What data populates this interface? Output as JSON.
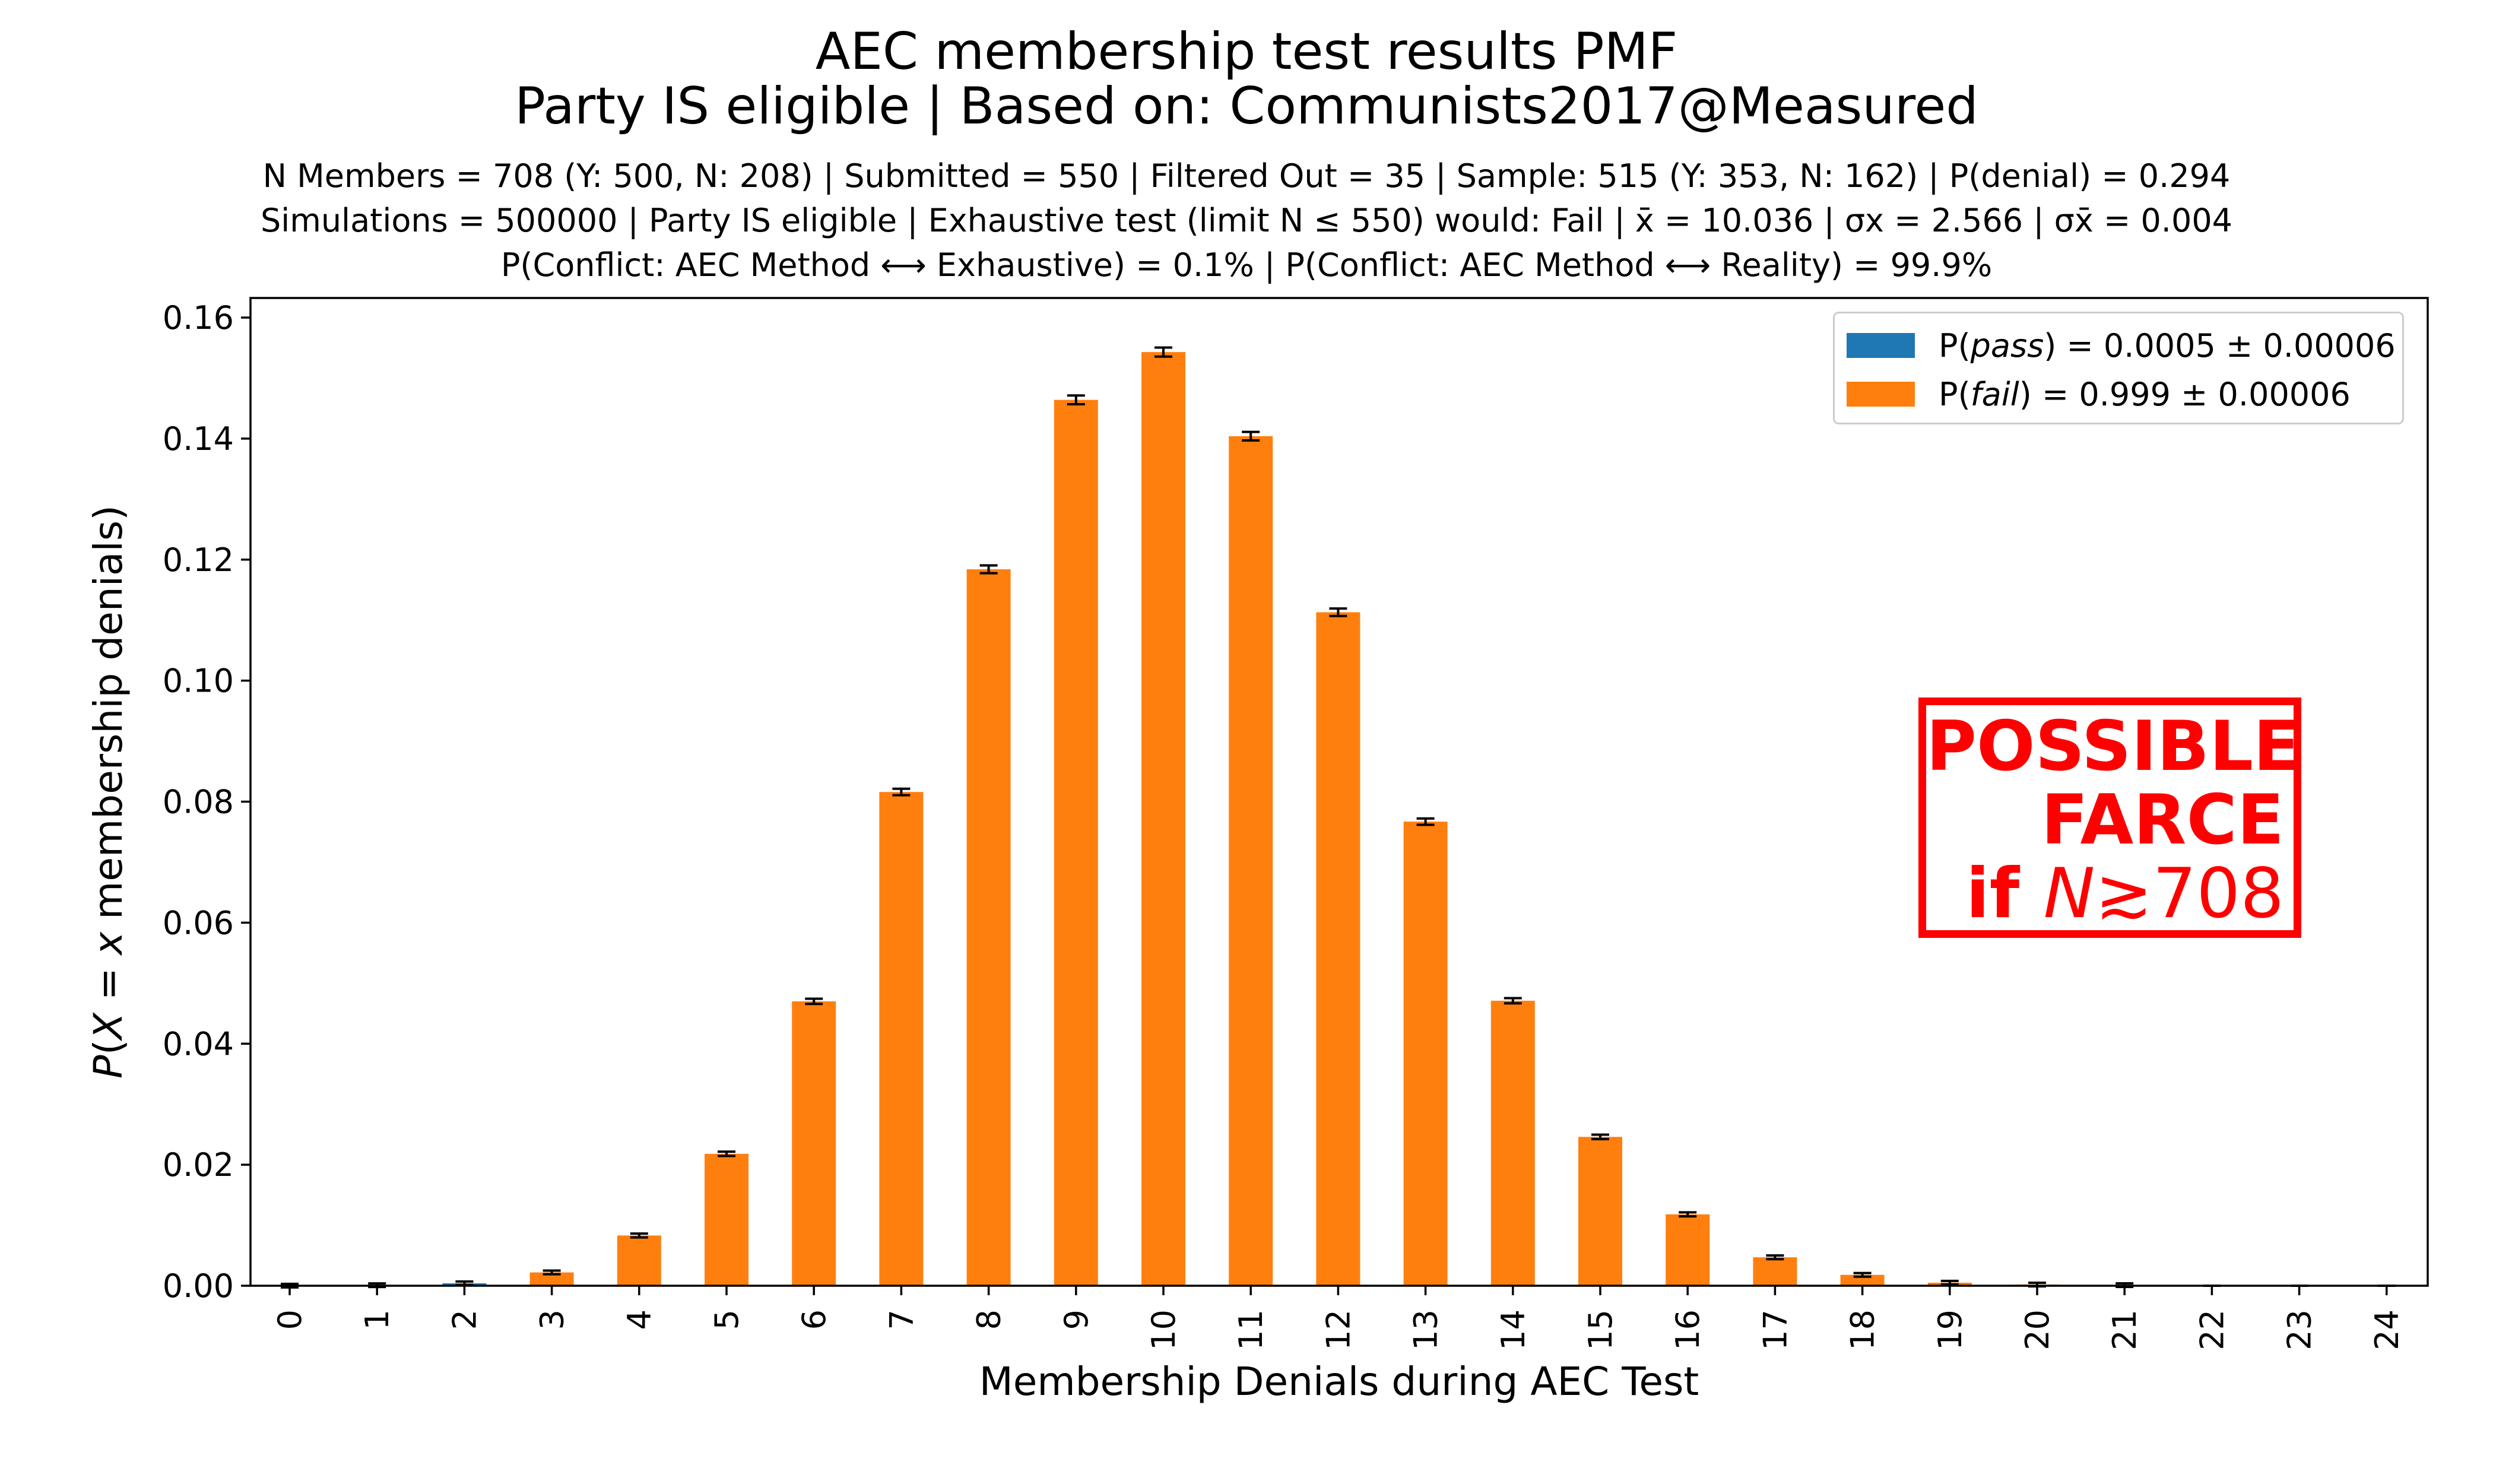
{
  "chart_data": {
    "type": "bar",
    "title": "AEC membership test results PMF",
    "subtitle": "Party IS eligible | Based on: Communists2017@Measured",
    "info_lines": [
      "N Members = 708 (Y: 500, N: 208) | Submitted = 550 | Filtered Out = 35 | Sample: 515 (Y: 353, N: 162) | P(denial) = 0.294",
      "Simulations = 500000 | Party IS eligible | Exhaustive test (limit N ≤ 550) would: Fail | x̄ = 10.036 | σx = 2.566 | σx̄ = 0.004",
      "P(Conflict: AEC Method ⟷ Exhaustive) = 0.1% | P(Conflict: AEC Method ⟷ Reality) = 99.9%"
    ],
    "xlabel": "Membership Denials during AEC Test",
    "ylabel": "P(X = x membership denials)",
    "ylim": [
      0,
      0.16
    ],
    "y_ticks": [
      "0.00",
      "0.02",
      "0.04",
      "0.06",
      "0.08",
      "0.10",
      "0.12",
      "0.14",
      "0.16"
    ],
    "categories": [
      "0",
      "1",
      "2",
      "3",
      "4",
      "5",
      "6",
      "7",
      "8",
      "9",
      "10",
      "11",
      "12",
      "13",
      "14",
      "15",
      "16",
      "17",
      "18",
      "19",
      "20",
      "21",
      "22",
      "23",
      "24"
    ],
    "series": [
      {
        "name": "P(pass) = 0.0005 ± 0.00006",
        "color": "#1f77b4",
        "values": [
          1e-05,
          9e-05,
          0.0004,
          0,
          0,
          0,
          0,
          0,
          0,
          0,
          0,
          0,
          0,
          0,
          0,
          0,
          0,
          0,
          0,
          0,
          0,
          0,
          0,
          0,
          0
        ]
      },
      {
        "name": "P(fail) = 0.999 ± 0.00006",
        "color": "#ff7f0e",
        "values": [
          0,
          0,
          0,
          0.0022,
          0.0083,
          0.0218,
          0.047,
          0.0816,
          0.1184,
          0.1464,
          0.1543,
          0.1404,
          0.1113,
          0.0767,
          0.0471,
          0.0246,
          0.0118,
          0.0047,
          0.0018,
          0.0005,
          0.0002,
          0.0001,
          0,
          0,
          0
        ]
      }
    ],
    "legend": {
      "location": "upper right",
      "entries": [
        {
          "prefix": "P(",
          "var": "pass",
          "suffix": ") = 0.0005 ± 0.00006",
          "color": "#1f77b4"
        },
        {
          "prefix": "P(",
          "var": "fail",
          "suffix": ") = 0.999 ± 0.00006",
          "color": "#ff7f0e"
        }
      ]
    },
    "annotation": {
      "line1": "POSSIBLE",
      "line2": "FARCE",
      "line3_prefix": "if ",
      "line3_var": "N",
      "line3_suffix": "≳708",
      "color": "#ff0000"
    }
  }
}
